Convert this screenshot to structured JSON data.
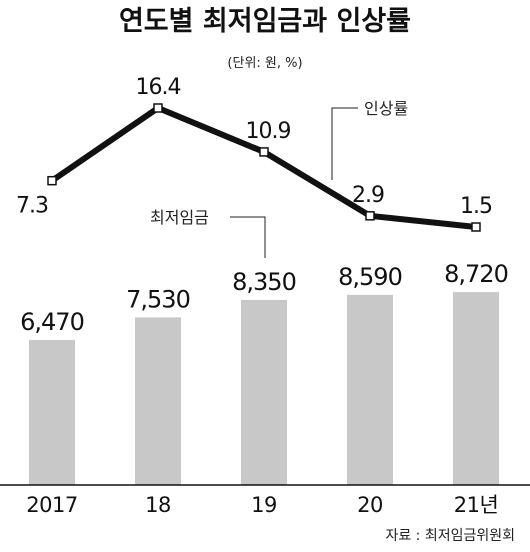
{
  "title": "연도별 최저임금과 인상률",
  "unit": "(단위: 원, %)",
  "source": "자료 : 최저임금위원회",
  "colors": {
    "bar": "#c8c8c8",
    "line": "#111111",
    "marker_fill": "#ffffff"
  },
  "chart_data": {
    "type": "bar+line",
    "categories": [
      "2017",
      "18",
      "19",
      "20",
      "21년"
    ],
    "series": [
      {
        "name": "최저임금",
        "type": "bar",
        "values": [
          6470,
          7530,
          8350,
          8590,
          8720
        ],
        "labels": [
          "6,470",
          "7,530",
          "8,350",
          "8,590",
          "8,720"
        ]
      },
      {
        "name": "인상률",
        "type": "line",
        "values": [
          7.3,
          16.4,
          10.9,
          2.9,
          1.5
        ],
        "labels": [
          "7.3",
          "16.4",
          "10.9",
          "2.9",
          "1.5"
        ]
      }
    ],
    "grid": false,
    "legend": "callouts"
  }
}
